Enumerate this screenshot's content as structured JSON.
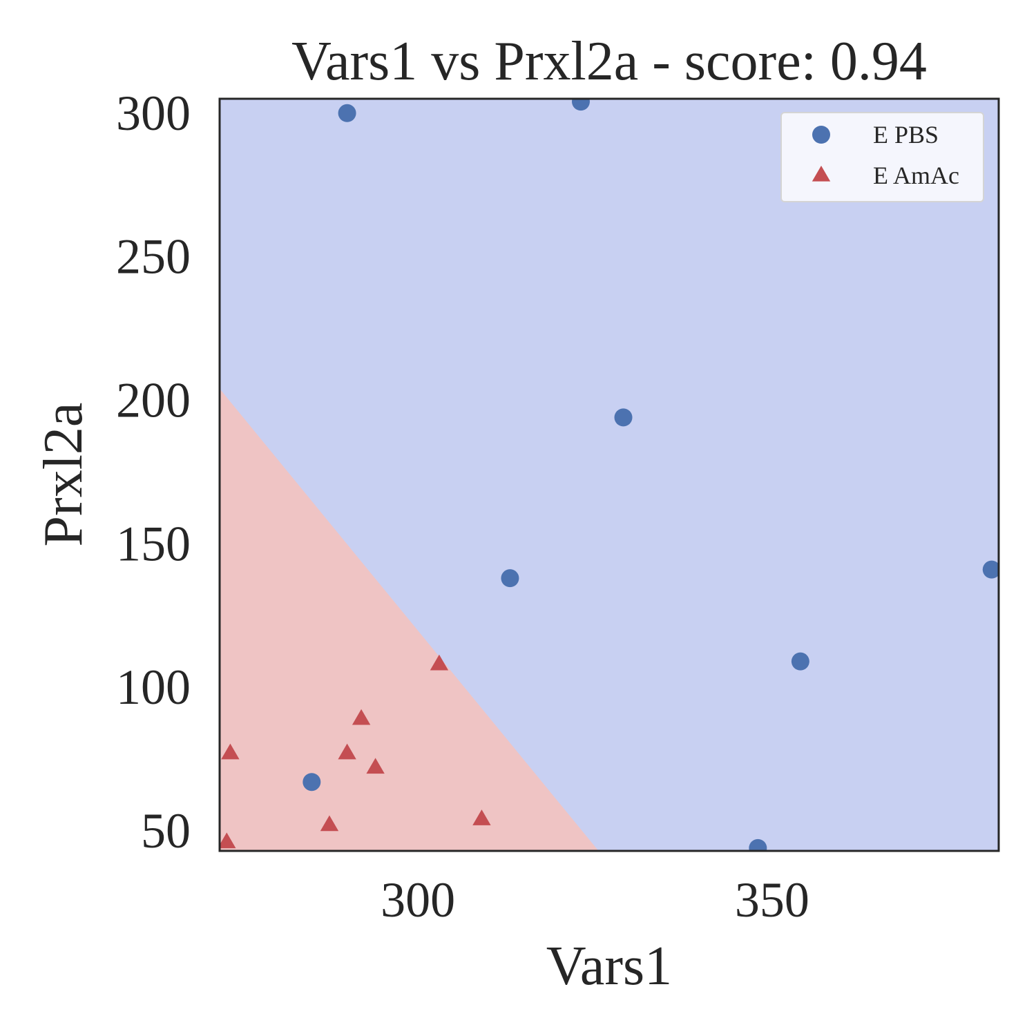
{
  "chart_data": {
    "type": "scatter",
    "title": "Vars1 vs Prxl2a - score: 0.94",
    "xlabel": "Vars1",
    "ylabel": "Prxl2a",
    "xlim": [
      272,
      382
    ],
    "ylim": [
      43,
      305
    ],
    "xticks": [
      300,
      350
    ],
    "yticks": [
      50,
      100,
      150,
      200,
      250,
      300
    ],
    "grid": false,
    "legend_position": "top-right",
    "decision_boundary": {
      "line": [
        [
          272,
          204
        ],
        [
          325.5,
          43
        ]
      ],
      "region_below_color": "#efc4c4",
      "region_above_color": "#c8d0f2"
    },
    "series": [
      {
        "name": "E PBS",
        "marker": "circle",
        "color": "#4c72b0",
        "points": [
          [
            290,
            300
          ],
          [
            323,
            304
          ],
          [
            329,
            194
          ],
          [
            313,
            138
          ],
          [
            354,
            109
          ],
          [
            381,
            141
          ],
          [
            348,
            44
          ],
          [
            285,
            67
          ]
        ]
      },
      {
        "name": "E AmAc",
        "marker": "triangle",
        "color": "#c44e52",
        "points": [
          [
            273.5,
            77
          ],
          [
            290,
            77
          ],
          [
            294,
            72
          ],
          [
            292,
            89
          ],
          [
            303,
            108
          ],
          [
            287.5,
            52
          ],
          [
            309,
            54
          ],
          [
            273,
            46
          ]
        ]
      }
    ]
  }
}
